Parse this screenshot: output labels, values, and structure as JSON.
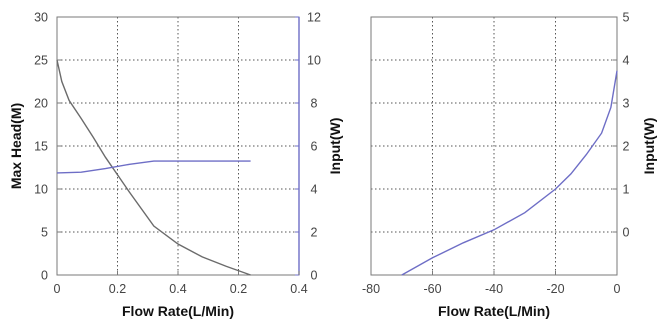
{
  "chart_data": [
    {
      "type": "line",
      "xlabel": "Flow Rate(L/Min)",
      "ylabel": "Max Head(M)",
      "y2label": "Input(W)",
      "x_tick_labels": [
        "0",
        "0.2",
        "0.4",
        "0.2",
        "0.4"
      ],
      "y_ticks": [
        0,
        5,
        10,
        15,
        20,
        25,
        30
      ],
      "y2_ticks": [
        0,
        2,
        4,
        6,
        8,
        10,
        12
      ],
      "xlim": [
        0,
        1.0
      ],
      "ylim": [
        0,
        30
      ],
      "y2lim": [
        0,
        12
      ],
      "grid": true,
      "series": [
        {
          "axis": "left",
          "color": "#6b6b6b",
          "x": [
            0,
            0.02,
            0.05,
            0.1,
            0.15,
            0.2,
            0.3,
            0.4,
            0.5,
            0.6,
            0.7,
            0.8
          ],
          "y": [
            25,
            22.5,
            20.3,
            18.2,
            16.0,
            13.7,
            9.6,
            5.7,
            3.6,
            2.1,
            1.0,
            0
          ]
        },
        {
          "axis": "right",
          "color": "#6e6ec6",
          "x": [
            0,
            0.1,
            0.2,
            0.3,
            0.4,
            0.5,
            0.6,
            0.7,
            0.8
          ],
          "y": [
            4.75,
            4.78,
            4.95,
            5.15,
            5.3,
            5.3,
            5.3,
            5.3,
            5.3
          ]
        }
      ]
    },
    {
      "type": "line",
      "xlabel": "Flow Rate(L/Min)",
      "y2label": "Input(W)",
      "x_ticks": [
        -80,
        -60,
        -40,
        -20,
        0
      ],
      "y2_tick_labels": [
        "0",
        "1",
        "2",
        "3",
        "4",
        "5"
      ],
      "xlim": [
        -80,
        0
      ],
      "y2lim": [
        -1,
        5
      ],
      "grid": true,
      "series": [
        {
          "axis": "right",
          "color": "#6e6ec6",
          "x": [
            -70,
            -60,
            -50,
            -40,
            -30,
            -20,
            -15,
            -10,
            -5,
            -2,
            0
          ],
          "y": [
            -1,
            -0.6,
            -0.25,
            0.05,
            0.45,
            1.0,
            1.35,
            1.8,
            2.3,
            2.9,
            3.75
          ]
        }
      ]
    }
  ]
}
